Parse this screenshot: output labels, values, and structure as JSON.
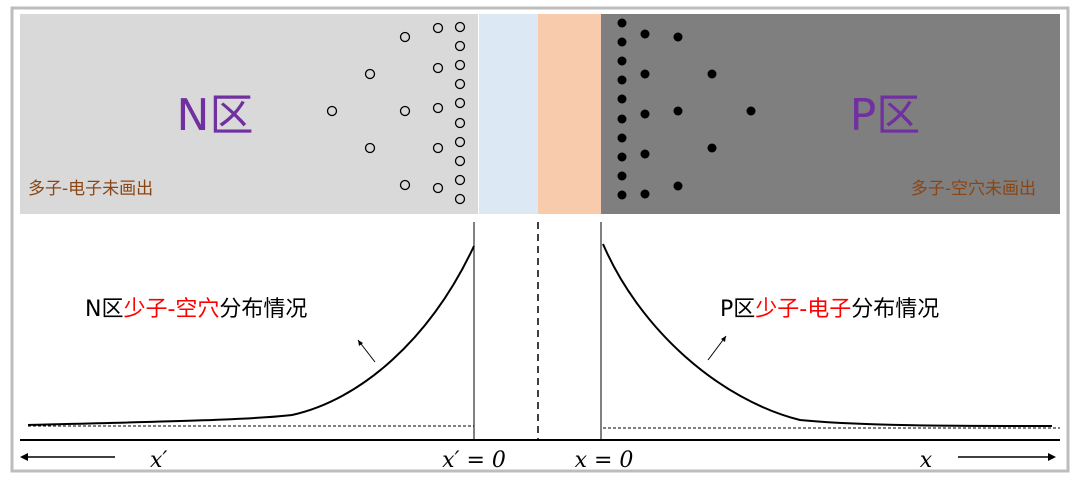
{
  "top": {
    "n_region_label": "N区",
    "p_region_label": "P区",
    "n_majority_note": "多子-电子未画出",
    "p_majority_note": "多子-空穴未画出"
  },
  "bottom": {
    "n_curve_label": {
      "prefix": "N区",
      "highlight": "少子-空穴",
      "suffix": "分布情况"
    },
    "p_curve_label": {
      "prefix": "P区",
      "highlight": "少子-电子",
      "suffix": "分布情况"
    },
    "axis_left": "x′",
    "axis_left_zero": "x′ = 0",
    "axis_right_zero": "x = 0",
    "axis_right": "x"
  },
  "colors": {
    "n_region": "#d9d9d9",
    "n_depletion": "#dde8f5",
    "p_depletion": "#f7cbac",
    "p_region": "#7f7f7f",
    "region_label": "#7030a0",
    "note": "#8b4513",
    "highlight": "#ff0000"
  }
}
